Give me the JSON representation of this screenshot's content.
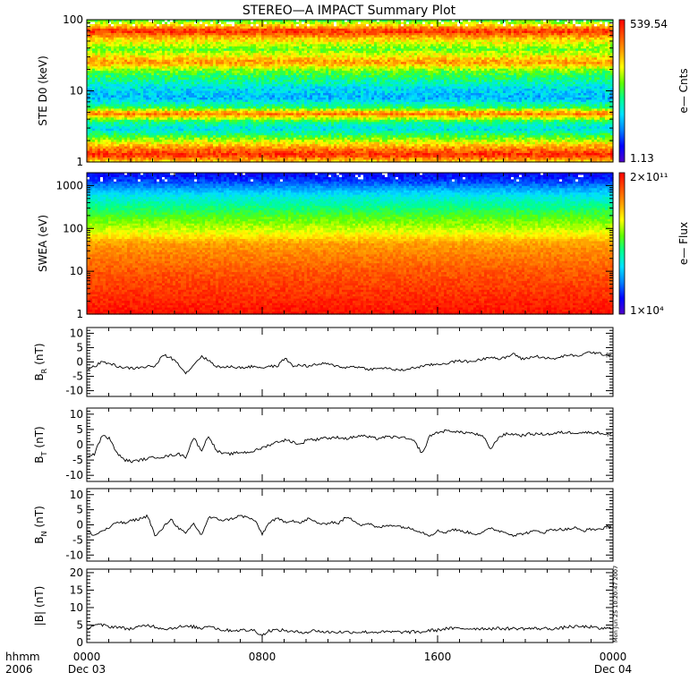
{
  "chart_data": {
    "title": "STEREO—A IMPACT Summary Plot",
    "stamp": "Mon Jun 25 10:20:47 2007",
    "x_axis": {
      "corner_labels": [
        "hhmm",
        "2006"
      ],
      "ticks": [
        {
          "label": "0000",
          "sub": "Dec 03"
        },
        {
          "label": "0800",
          "sub": ""
        },
        {
          "label": "1600",
          "sub": ""
        },
        {
          "label": "0000",
          "sub": "Dec 04"
        }
      ],
      "range_hours": [
        0,
        24
      ]
    },
    "panels": [
      {
        "id": "ste",
        "type": "heatmap",
        "ylabel": "STE D0 (keV)",
        "yscale": "log",
        "ylim": [
          1,
          100
        ],
        "yticks": [
          "1",
          "10",
          "100"
        ],
        "colorbar": {
          "label": "e— Cnts",
          "max": "539.54",
          "min": "1.13",
          "scale": "log"
        },
        "palette": [
          "#5000c8",
          "#0000ff",
          "#0080ff",
          "#00e0ff",
          "#00ff90",
          "#60ff00",
          "#ffff00",
          "#ffa000",
          "#ff5000",
          "#ff0000"
        ]
      },
      {
        "id": "swea",
        "type": "heatmap",
        "ylabel": "SWEA (eV)",
        "yscale": "log",
        "ylim": [
          1,
          2000
        ],
        "yticks": [
          "1",
          "10",
          "100",
          "1000"
        ],
        "colorbar": {
          "label": "e— Flux",
          "max": "2×10¹¹",
          "min": "1×10⁴",
          "scale": "log"
        },
        "palette": [
          "#5000c8",
          "#0000ff",
          "#0080ff",
          "#00e0ff",
          "#00ff90",
          "#60ff00",
          "#ffff00",
          "#ffa000",
          "#ff5000",
          "#ff0000"
        ]
      },
      {
        "id": "br",
        "type": "line",
        "ylabel": "BR (nT)",
        "ylabel_main": "B",
        "ylabel_sub": "R",
        "ylabel_unit": "(nT)",
        "ylim": [
          -12,
          12
        ],
        "yticks": [
          -10,
          -5,
          0,
          5,
          10
        ],
        "end_marker": "R",
        "values": [
          -2.5,
          -1.5,
          0,
          -0.5,
          -1.5,
          -2,
          -2.2,
          -2,
          -1.5,
          -1.5,
          2.5,
          1.5,
          -0.5,
          -4,
          -1,
          2,
          0.5,
          -1.5,
          -2,
          -1.5,
          -2,
          -1.8,
          -1.5,
          -2,
          -1.5,
          -1.5,
          1.5,
          -1.5,
          -1,
          -1.5,
          -1,
          -0.5,
          -1,
          -1.5,
          -2,
          -1.5,
          -2,
          -2.5,
          -2.5,
          -2,
          -2.5,
          -3,
          -2.5,
          -2,
          -1.5,
          -1,
          -0.8,
          -0.5,
          0,
          0.5,
          0,
          0.5,
          1,
          2,
          1,
          1.5,
          3,
          1,
          1.5,
          2,
          1.5,
          1,
          1.5,
          2.5,
          2,
          2.5,
          3.5,
          3,
          2.5,
          2.5
        ]
      },
      {
        "id": "bt",
        "type": "line",
        "ylabel": "BT (nT)",
        "ylabel_main": "B",
        "ylabel_sub": "T",
        "ylabel_unit": "(nT)",
        "ylim": [
          -12,
          12
        ],
        "yticks": [
          -10,
          -5,
          0,
          5,
          10
        ],
        "end_marker": "T",
        "values": [
          -4,
          -3,
          3,
          2,
          -3,
          -5,
          -5.5,
          -5,
          -4.5,
          -4,
          -4,
          -3.5,
          -3,
          -4,
          2.5,
          -2,
          3,
          -2,
          -3,
          -3,
          -2.5,
          -2.5,
          -2,
          -1,
          0,
          1,
          1.5,
          1,
          0,
          2,
          1.5,
          2.5,
          2,
          2.5,
          2,
          2.5,
          3,
          2.5,
          2,
          2.5,
          2.5,
          2.5,
          2,
          1,
          -3,
          3,
          4,
          4.5,
          4.5,
          4,
          4,
          3.5,
          2.5,
          -1.5,
          2.5,
          3.5,
          3.5,
          3,
          3.5,
          3.5,
          3.5,
          3.5,
          4,
          4,
          4,
          4,
          4,
          4,
          3.5,
          3.5
        ]
      },
      {
        "id": "bn",
        "type": "line",
        "ylabel": "BN (nT)",
        "ylabel_main": "B",
        "ylabel_sub": "N",
        "ylabel_unit": "(nT)",
        "ylim": [
          -12,
          12
        ],
        "yticks": [
          -10,
          -5,
          0,
          5,
          10
        ],
        "end_marker": "N",
        "values": [
          -2,
          -3.5,
          -2,
          -1,
          1,
          0.5,
          1.5,
          2,
          3,
          -4,
          -1,
          2,
          -1,
          -3,
          0.5,
          -3.5,
          2.5,
          2,
          1.5,
          2,
          3,
          2.5,
          1.5,
          -3,
          1,
          2,
          1,
          1.5,
          0.5,
          2,
          1,
          0,
          1,
          0.5,
          2.5,
          1.5,
          0,
          0.5,
          -1,
          -0.5,
          0,
          -0.5,
          -1,
          -1.5,
          -2.5,
          -3.5,
          -2,
          -2.5,
          -1.5,
          -2,
          -2.5,
          -3,
          -2.5,
          -1,
          -2,
          -2.5,
          -3.5,
          -3,
          -2.5,
          -2,
          -2.5,
          -1.5,
          -1.5,
          -1.5,
          -1,
          -2,
          -1.5,
          -1.5,
          -1,
          -0.5
        ]
      },
      {
        "id": "bmag",
        "type": "line",
        "ylabel": "|B| (nT)",
        "ylabel_main": "|B|",
        "ylabel_sub": "",
        "ylabel_unit": "(nT)",
        "ylim": [
          0,
          21
        ],
        "yticks": [
          0,
          5,
          10,
          15,
          20
        ],
        "end_marker": "",
        "values": [
          4,
          5,
          5,
          4.5,
          4.5,
          4,
          4,
          4.5,
          5,
          4.5,
          4,
          4,
          4.5,
          4.5,
          4.5,
          4,
          5,
          4,
          3.5,
          3.5,
          3.5,
          3.5,
          3.5,
          2,
          3.5,
          3.5,
          3.5,
          3,
          3,
          3,
          3.5,
          3,
          3,
          3,
          3,
          3,
          3,
          3,
          3,
          3,
          3,
          3,
          3,
          3,
          3,
          3.5,
          3.5,
          4,
          4,
          4,
          4,
          4,
          4,
          4,
          4,
          4,
          4,
          4,
          4,
          4,
          4,
          4,
          4,
          4.5,
          4.5,
          4.5,
          4.5,
          4,
          4,
          4
        ]
      }
    ]
  }
}
